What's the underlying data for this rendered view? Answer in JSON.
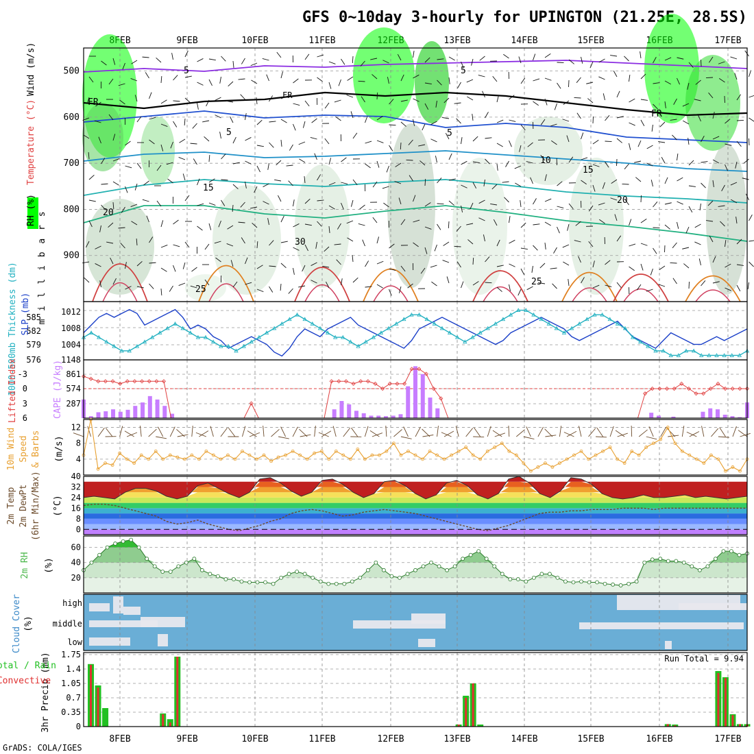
{
  "title": "GFS 0~10day 3-hourly for UPINGTON (21.25E, 28.5S)",
  "footer": "GrADS: COLA/IGES",
  "dates": [
    "8FEB",
    "9FEB",
    "10FEB",
    "11FEB",
    "12FEB",
    "13FEB",
    "14FEB",
    "15FEB",
    "16FEB",
    "17FEB"
  ],
  "colors": {
    "rh_green": "#00ff00",
    "rh_dark": "#8faa8f",
    "sky": "#6aaed6",
    "cape": "#c77dff",
    "lifted": "#e04040",
    "wind10": "#e8a030",
    "rh2m": "#4db84d",
    "precip_total": "#22c022",
    "precip_conv": "#e03030",
    "slp": "#1a3fc8",
    "thick": "#20b0c0"
  },
  "chart_data": [
    {
      "type": "heatmap",
      "panel": "upper-air",
      "ylabel": "m i l l i b a r s",
      "labels": [
        "Wind (m/s)",
        "Temperature (°C)",
        "RH (%)"
      ],
      "yticks": [
        500,
        600,
        700,
        800,
        900
      ],
      "ylim": [
        1000,
        450
      ],
      "freezing_label": "FR",
      "isotherm_labels": [
        {
          "text": "5",
          "color": "#8a2be2"
        },
        {
          "text": "5",
          "color": "#8a2be2"
        },
        {
          "text": "5",
          "color": "#2050d0"
        },
        {
          "text": "5",
          "color": "#2050d0"
        },
        {
          "text": "10",
          "color": "#1e90c8"
        },
        {
          "text": "15",
          "color": "#20b0b0"
        },
        {
          "text": "15",
          "color": "#20b0b0"
        },
        {
          "text": "20",
          "color": "#20b080"
        },
        {
          "text": "20",
          "color": "#20b080"
        },
        {
          "text": "25",
          "color": "#e8a030"
        },
        {
          "text": "25",
          "color": "#e8a030"
        },
        {
          "text": "30",
          "color": "#e08020"
        }
      ]
    },
    {
      "type": "line",
      "panel": "slp-thickness",
      "ylabel_left": "1000-500mb Thickness (dm)",
      "ylabel_right": "SLP (mb)",
      "left_ticks": [
        "585",
        "582",
        "579",
        "576"
      ],
      "right_ticks": [
        "1012",
        "1008",
        "1004",
        "1148"
      ],
      "series": [
        {
          "name": "SLP (mb)",
          "ylim": [
            1000,
            1014
          ],
          "values": [
            1007,
            1009,
            1011,
            1012,
            1011,
            1012,
            1013,
            1012,
            1009,
            1010,
            1011,
            1012,
            1013,
            1011,
            1008,
            1009,
            1008,
            1006,
            1005,
            1003,
            1004,
            1005,
            1006,
            1005,
            1004,
            1002,
            1001,
            1003,
            1006,
            1008,
            1007,
            1006,
            1008,
            1009,
            1010,
            1011,
            1009,
            1008,
            1007,
            1006,
            1005,
            1004,
            1003,
            1005,
            1008,
            1009,
            1010,
            1011,
            1010,
            1009,
            1008,
            1007,
            1006,
            1005,
            1004,
            1005,
            1007,
            1008,
            1009,
            1010,
            1011,
            1010,
            1009,
            1008,
            1006,
            1005,
            1006,
            1007,
            1008,
            1009,
            1010,
            1008,
            1006,
            1005,
            1004,
            1003,
            1005,
            1007,
            1006,
            1005,
            1004,
            1004,
            1005,
            1006,
            1005,
            1006,
            1007,
            1008
          ]
        },
        {
          "name": "1000-500mb Thickness (dm)",
          "ylim": [
            575,
            587
          ],
          "values": [
            580,
            581,
            580,
            579,
            578,
            577,
            577,
            578,
            579,
            580,
            581,
            582,
            583,
            582,
            581,
            580,
            580,
            579,
            578,
            578,
            577,
            578,
            579,
            580,
            581,
            582,
            583,
            584,
            585,
            584,
            583,
            582,
            581,
            580,
            580,
            579,
            578,
            579,
            580,
            581,
            582,
            583,
            584,
            585,
            585,
            584,
            583,
            582,
            581,
            580,
            579,
            580,
            581,
            582,
            583,
            584,
            585,
            586,
            586,
            585,
            584,
            583,
            582,
            581,
            582,
            583,
            584,
            585,
            585,
            584,
            583,
            582,
            580,
            579,
            578,
            577,
            577,
            576,
            576,
            577,
            577,
            576,
            576,
            576,
            576,
            576,
            576,
            577
          ]
        }
      ]
    },
    {
      "type": "bar",
      "panel": "cape-lifted",
      "ylabel_left": "Lifted Index",
      "ylabel_right": "CAPE (J/kg)",
      "li_ticks": [
        "-3",
        "0",
        "3",
        "6"
      ],
      "cape_ticks": [
        "861",
        "574",
        "287"
      ],
      "series": [
        {
          "name": "CAPE (J/kg)",
          "ylim": [
            0,
            1148
          ],
          "values": [
            380,
            40,
            120,
            140,
            180,
            130,
            170,
            250,
            320,
            450,
            380,
            250,
            90,
            0,
            0,
            0,
            0,
            0,
            0,
            0,
            0,
            0,
            0,
            0,
            0,
            0,
            0,
            0,
            0,
            0,
            0,
            0,
            0,
            0,
            180,
            350,
            280,
            150,
            100,
            50,
            50,
            40,
            50,
            80,
            650,
            1060,
            900,
            420,
            200,
            0,
            0,
            0,
            0,
            0,
            0,
            0,
            0,
            0,
            0,
            0,
            0,
            0,
            0,
            0,
            0,
            0,
            0,
            0,
            0,
            0,
            0,
            0,
            0,
            0,
            0,
            0,
            0,
            110,
            50,
            0,
            30,
            0,
            0,
            0,
            130,
            200,
            180,
            70,
            40,
            20,
            320
          ]
        },
        {
          "name": "Lifted Index",
          "ylim": [
            6,
            -5
          ],
          "values": [
            -2.5,
            -2,
            -1.5,
            -1.5,
            -1.5,
            -1,
            -1.5,
            -1.5,
            -1.5,
            -1.5,
            -1.5,
            -1.5,
            6,
            6,
            6,
            6,
            6,
            6,
            6,
            6,
            6,
            6,
            6,
            3,
            6,
            6,
            6,
            6,
            6,
            6,
            6,
            6,
            6,
            6,
            -1.5,
            -1.5,
            -1.5,
            -1,
            -1.5,
            -1.5,
            -1,
            0,
            -1,
            -1,
            -1,
            -4,
            -4,
            -3,
            0,
            2,
            6,
            6,
            6,
            6,
            6,
            6,
            6,
            6,
            6,
            6,
            6,
            6,
            6,
            6,
            6,
            6,
            6,
            6,
            6,
            6,
            6,
            6,
            6,
            6,
            6,
            6,
            6,
            1,
            0,
            0,
            0,
            0,
            -1,
            0,
            1,
            1,
            0,
            -1,
            0,
            0,
            0,
            0
          ]
        }
      ]
    },
    {
      "type": "line",
      "panel": "wind10m",
      "ylabel": "10m Wind Speed & Barbs (m/s)",
      "yticks": [
        "12",
        "8",
        "4"
      ],
      "ylim": [
        0,
        14
      ],
      "series": [
        {
          "name": "10m Wind Speed",
          "values": [
            5,
            14,
            1.5,
            3,
            2.5,
            5.5,
            4,
            3,
            5,
            4,
            6,
            4,
            5,
            4.5,
            4,
            5,
            4,
            6,
            5,
            4,
            5,
            4,
            6,
            5,
            4,
            5,
            3.5,
            4.5,
            5,
            6,
            5,
            4,
            5.5,
            6,
            4,
            6,
            5,
            4,
            6.5,
            4,
            5,
            5,
            6,
            8,
            5,
            6,
            5,
            4,
            6,
            5,
            4,
            5,
            6,
            7,
            5,
            4,
            6,
            7,
            8,
            6,
            5,
            3,
            1,
            2,
            3,
            2,
            3,
            4,
            5,
            6,
            4,
            5,
            6,
            7,
            4,
            3,
            6,
            5,
            7,
            8,
            9,
            12,
            8,
            6,
            5,
            4,
            3,
            5,
            4,
            1,
            2,
            1,
            4
          ]
        }
      ]
    },
    {
      "type": "area",
      "panel": "temp2m",
      "ylabel": "2m Temp 2m DewPt (6hr Min/Max) (°C)",
      "yticks": [
        "40",
        "32",
        "24",
        "16",
        "8",
        "0"
      ],
      "ylim": [
        -4,
        40
      ],
      "series": [
        {
          "name": "2m Temp",
          "values": [
            24,
            25,
            24,
            23,
            28,
            31,
            31,
            29,
            25,
            23,
            25,
            33,
            35,
            31,
            27,
            24,
            28,
            38,
            39,
            35,
            29,
            25,
            28,
            37,
            38,
            34,
            28,
            24,
            27,
            36,
            37,
            33,
            27,
            23,
            26,
            35,
            37,
            33,
            26,
            23,
            27,
            38,
            40,
            35,
            27,
            24,
            29,
            39,
            38,
            34,
            27,
            24,
            23,
            24,
            26,
            24,
            24,
            25,
            26,
            24,
            25,
            24,
            23,
            24,
            25
          ]
        },
        {
          "name": "2m DewPt",
          "values": [
            18,
            19,
            19,
            18,
            16,
            14,
            12,
            10,
            6,
            4,
            5,
            7,
            4,
            2,
            0,
            -1,
            1,
            3,
            6,
            8,
            12,
            14,
            15,
            14,
            12,
            10,
            11,
            13,
            14,
            15,
            14,
            13,
            12,
            10,
            8,
            6,
            4,
            2,
            0,
            -1,
            1,
            3,
            6,
            9,
            12,
            13,
            13,
            14,
            14,
            15,
            15,
            15,
            16,
            16,
            16,
            15,
            16,
            16,
            16,
            16,
            16,
            16,
            16,
            16,
            16
          ]
        }
      ]
    },
    {
      "type": "area",
      "panel": "rh2m",
      "ylabel": "2m RH (%)",
      "yticks": [
        "60",
        "40",
        "20"
      ],
      "ylim": [
        0,
        75
      ],
      "series": [
        {
          "name": "2m RH",
          "values": [
            30,
            40,
            50,
            60,
            65,
            68,
            70,
            60,
            45,
            35,
            28,
            28,
            35,
            40,
            45,
            30,
            25,
            22,
            18,
            18,
            15,
            14,
            14,
            14,
            12,
            20,
            25,
            28,
            25,
            20,
            15,
            12,
            12,
            12,
            15,
            20,
            30,
            40,
            30,
            22,
            20,
            25,
            30,
            35,
            40,
            35,
            30,
            35,
            45,
            50,
            55,
            45,
            35,
            25,
            18,
            18,
            15,
            20,
            25,
            25,
            20,
            15,
            14,
            15,
            14,
            14,
            12,
            11,
            10,
            12,
            15,
            40,
            44,
            45,
            42,
            42,
            40,
            35,
            30,
            35,
            45,
            55,
            55,
            50,
            52
          ]
        }
      ]
    },
    {
      "type": "heatmap",
      "panel": "cloud",
      "ylabel": "Cloud Cover (%)",
      "levels": [
        "high",
        "middle",
        "low"
      ]
    },
    {
      "type": "bar",
      "panel": "precip",
      "ylabel": "3hr Precip (mm)",
      "legend": [
        "Total / Rain",
        "Convective"
      ],
      "run_total": "Run Total = 9.94",
      "yticks": [
        "1.75",
        "1.4",
        "1.05",
        "0.7",
        "0.35",
        "0"
      ],
      "ylim": [
        0,
        1.8
      ],
      "series": [
        {
          "name": "Total / Rain",
          "values": [
            0,
            1.52,
            1.0,
            0.45,
            0,
            0,
            0,
            0,
            0,
            0,
            0,
            0.32,
            0.18,
            1.7,
            0,
            0,
            0,
            0,
            0,
            0,
            0,
            0,
            0,
            0,
            0,
            0,
            0,
            0,
            0,
            0,
            0,
            0,
            0,
            0,
            0,
            0,
            0,
            0,
            0,
            0,
            0,
            0,
            0,
            0,
            0,
            0,
            0,
            0,
            0,
            0,
            0,
            0,
            0.05,
            0.75,
            1.05,
            0.05,
            0,
            0,
            0,
            0,
            0,
            0,
            0,
            0,
            0,
            0,
            0,
            0,
            0,
            0,
            0,
            0,
            0,
            0,
            0,
            0,
            0,
            0,
            0,
            0,
            0,
            0.06,
            0.05,
            0,
            0,
            0,
            0,
            0,
            1.35,
            1.2,
            0.3,
            0.06,
            0.06
          ]
        },
        {
          "name": "Convective",
          "values": [
            0,
            1.5,
            0.95,
            0,
            0,
            0,
            0,
            0,
            0,
            0,
            0,
            0.3,
            0.1,
            1.7,
            0,
            0,
            0,
            0,
            0,
            0,
            0,
            0,
            0,
            0,
            0,
            0,
            0,
            0,
            0,
            0,
            0,
            0,
            0,
            0,
            0,
            0,
            0,
            0,
            0,
            0,
            0,
            0,
            0,
            0,
            0,
            0,
            0,
            0,
            0,
            0,
            0,
            0,
            0.05,
            0.7,
            1.05,
            0,
            0,
            0,
            0,
            0,
            0,
            0,
            0,
            0,
            0,
            0,
            0,
            0,
            0,
            0,
            0,
            0,
            0,
            0,
            0,
            0,
            0,
            0,
            0,
            0,
            0,
            0.06,
            0.03,
            0,
            0,
            0,
            0,
            0,
            1.3,
            1.18,
            0.28,
            0.06,
            0.05
          ]
        }
      ]
    }
  ]
}
